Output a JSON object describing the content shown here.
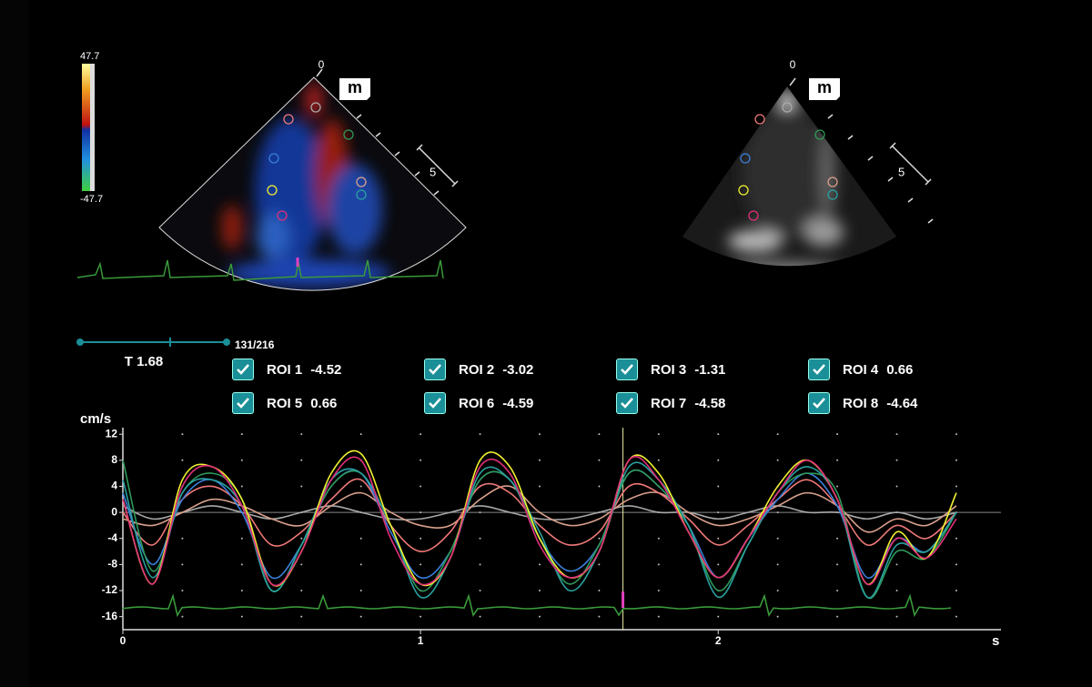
{
  "colorbar": {
    "max": 47.7,
    "min": -47.7
  },
  "images": [
    {
      "depth_start": 0,
      "depth_mark": 5,
      "badge": "m"
    },
    {
      "depth_start": 0,
      "depth_mark": 5,
      "badge": "m"
    }
  ],
  "time_label": "T",
  "time": 1.68,
  "frame": 131,
  "frame_count": 216,
  "chart_data": {
    "type": "line",
    "y_label": "cm/s",
    "x_label": "s",
    "x": [
      0,
      0.1,
      0.2,
      0.3,
      0.4,
      0.5,
      0.6,
      0.7,
      0.8,
      0.9,
      1.0,
      1.1,
      1.2,
      1.3,
      1.4,
      1.5,
      1.6,
      1.7,
      1.8,
      1.9,
      2.0,
      2.1,
      2.2,
      2.3,
      2.4,
      2.5,
      2.6,
      2.7,
      2.8
    ],
    "xlim": [
      0,
      2.95
    ],
    "xticks": [
      0,
      1,
      2
    ],
    "ylim": [
      -18,
      13
    ],
    "yticks": [
      12,
      8,
      4,
      0,
      -4,
      -8,
      -12,
      -16
    ],
    "grid": true,
    "series": [
      {
        "name": "ROI 1",
        "cursor_value": -4.52,
        "color": "#f07878",
        "values": [
          0,
          -5,
          2,
          4,
          1,
          -5,
          -3,
          2,
          5,
          -2,
          -6,
          -3,
          4,
          3,
          -2,
          -5,
          -3,
          4,
          3,
          -1,
          -5,
          -2,
          2,
          5,
          1,
          -5,
          -2,
          -4,
          0
        ]
      },
      {
        "name": "ROI 2",
        "cursor_value": -3.02,
        "color": "#a8a8a8",
        "values": [
          1,
          -1,
          0,
          1,
          0,
          -1,
          0,
          1,
          0,
          -1,
          -1,
          0,
          1,
          0,
          -1,
          -1,
          0,
          1,
          0,
          0,
          -1,
          0,
          1,
          0,
          0,
          -1,
          0,
          -1,
          0
        ]
      },
      {
        "name": "ROI 3",
        "cursor_value": -1.31,
        "color": "#2e9a5a",
        "values": [
          8,
          -9,
          3,
          6,
          2,
          -12,
          -5,
          4,
          6,
          -2,
          -12,
          -6,
          5,
          5,
          -4,
          -11,
          -5,
          6,
          4,
          -2,
          -12,
          -5,
          3,
          6,
          3,
          -13,
          -6,
          -7,
          0
        ]
      },
      {
        "name": "ROI 4",
        "cursor_value": 0.66,
        "color": "#3a7fd8",
        "values": [
          3,
          -8,
          2,
          5,
          0,
          -10,
          -5,
          4,
          6,
          -3,
          -10,
          -6,
          5,
          5,
          -4,
          -9,
          -5,
          6,
          4,
          -2,
          -10,
          -4,
          2,
          6,
          1,
          -10,
          -4,
          -6,
          0
        ]
      },
      {
        "name": "ROI 5",
        "cursor_value": 0.66,
        "color": "#d9a08c",
        "values": [
          -1,
          -2,
          0,
          2,
          1,
          -1,
          -2,
          1,
          3,
          0,
          -2,
          -2,
          2,
          4,
          0,
          -2,
          -1,
          2,
          3,
          0,
          -2,
          -1,
          1,
          3,
          1,
          -3,
          -1,
          -2,
          1
        ]
      },
      {
        "name": "ROI 6",
        "cursor_value": -4.59,
        "color": "#f0f030",
        "values": [
          2,
          -11,
          5,
          7,
          2,
          -11,
          -6,
          6,
          9,
          -2,
          -11,
          -7,
          8,
          7,
          -4,
          -10,
          -6,
          8,
          6,
          -3,
          -10,
          -4,
          4,
          8,
          2,
          -11,
          -3,
          -7,
          3
        ]
      },
      {
        "name": "ROI 7",
        "cursor_value": -4.58,
        "color": "#2aa0a0",
        "values": [
          5,
          -10,
          3,
          5,
          1,
          -12,
          -5,
          5,
          6,
          -2,
          -13,
          -7,
          6,
          5,
          -3,
          -12,
          -6,
          7,
          5,
          -2,
          -13,
          -5,
          3,
          7,
          2,
          -13,
          -5,
          -6,
          0
        ]
      },
      {
        "name": "ROI 8",
        "cursor_value": -4.64,
        "color": "#e0307a",
        "values": [
          2,
          -11,
          4,
          7,
          1,
          -11,
          -6,
          5,
          8,
          -4,
          -11,
          -7,
          7,
          6,
          -5,
          -10,
          -6,
          8,
          5,
          -3,
          -10,
          -4,
          3,
          8,
          2,
          -11,
          -4,
          -7,
          -1
        ]
      }
    ]
  }
}
